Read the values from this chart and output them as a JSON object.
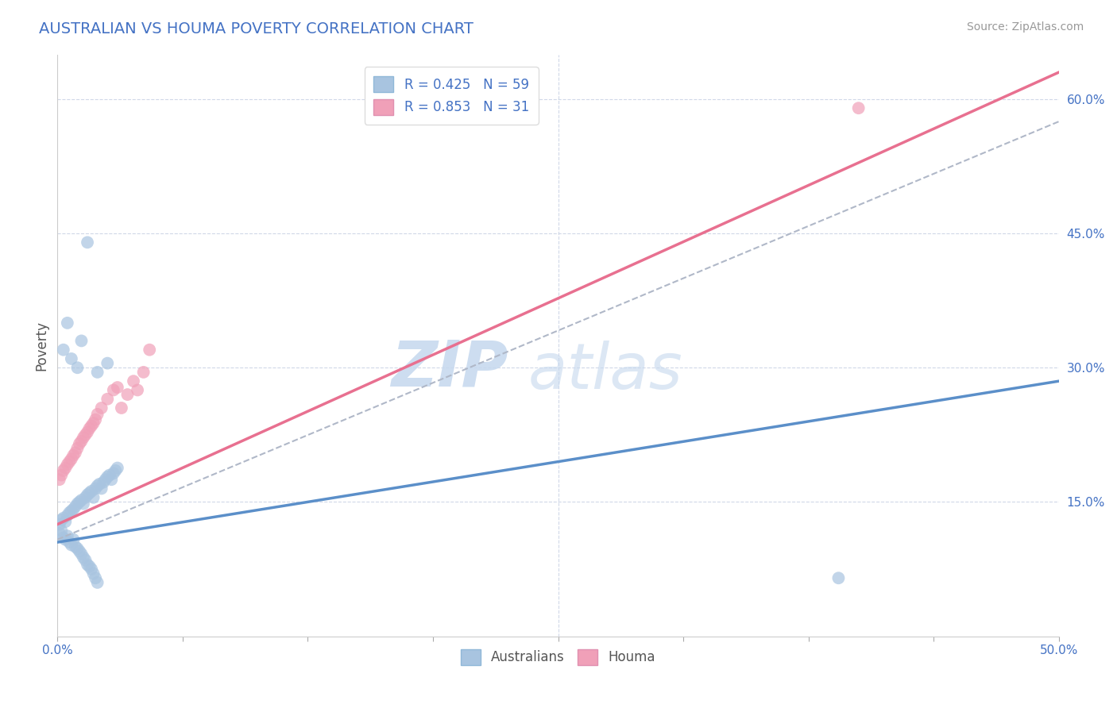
{
  "title": "AUSTRALIAN VS HOUMA POVERTY CORRELATION CHART",
  "source": "Source: ZipAtlas.com",
  "ylabel": "Poverty",
  "xlim": [
    0.0,
    0.5
  ],
  "ylim": [
    0.0,
    0.65
  ],
  "xtick_positions": [
    0.0,
    0.0625,
    0.125,
    0.1875,
    0.25,
    0.3125,
    0.375,
    0.4375,
    0.5
  ],
  "xtick_labels_show": {
    "0.0": "0.0%",
    "0.50": "50.0%"
  },
  "yticks_right": [
    0.15,
    0.3,
    0.45,
    0.6
  ],
  "legend_r1": "R = 0.425   N = 59",
  "legend_r2": "R = 0.853   N = 31",
  "color_australian": "#a8c4e0",
  "color_houma": "#f0a0b8",
  "line_color_australian": "#5b8fc9",
  "line_color_houma": "#e87090",
  "background_color": "#ffffff",
  "grid_color": "#d0d8e8",
  "watermark_zip": "ZIP",
  "watermark_atlas": "atlas",
  "aus_scatter_x": [
    0.001,
    0.002,
    0.003,
    0.004,
    0.005,
    0.006,
    0.007,
    0.008,
    0.009,
    0.01,
    0.011,
    0.012,
    0.013,
    0.014,
    0.015,
    0.016,
    0.017,
    0.018,
    0.019,
    0.02,
    0.021,
    0.022,
    0.023,
    0.024,
    0.025,
    0.026,
    0.027,
    0.028,
    0.029,
    0.03,
    0.001,
    0.002,
    0.003,
    0.004,
    0.005,
    0.006,
    0.007,
    0.008,
    0.009,
    0.01,
    0.011,
    0.012,
    0.013,
    0.014,
    0.015,
    0.016,
    0.017,
    0.018,
    0.019,
    0.02,
    0.003,
    0.005,
    0.007,
    0.01,
    0.012,
    0.015,
    0.02,
    0.025,
    0.39
  ],
  "aus_scatter_y": [
    0.125,
    0.13,
    0.132,
    0.128,
    0.135,
    0.138,
    0.14,
    0.142,
    0.145,
    0.148,
    0.15,
    0.152,
    0.148,
    0.155,
    0.158,
    0.16,
    0.162,
    0.155,
    0.165,
    0.168,
    0.17,
    0.165,
    0.172,
    0.175,
    0.178,
    0.18,
    0.175,
    0.182,
    0.185,
    0.188,
    0.115,
    0.118,
    0.11,
    0.108,
    0.112,
    0.105,
    0.102,
    0.108,
    0.1,
    0.098,
    0.095,
    0.092,
    0.088,
    0.085,
    0.08,
    0.078,
    0.075,
    0.07,
    0.065,
    0.06,
    0.32,
    0.35,
    0.31,
    0.3,
    0.33,
    0.44,
    0.295,
    0.305,
    0.065
  ],
  "houma_scatter_x": [
    0.001,
    0.002,
    0.003,
    0.004,
    0.005,
    0.006,
    0.007,
    0.008,
    0.009,
    0.01,
    0.011,
    0.012,
    0.013,
    0.014,
    0.015,
    0.016,
    0.017,
    0.018,
    0.019,
    0.02,
    0.022,
    0.025,
    0.028,
    0.03,
    0.032,
    0.035,
    0.038,
    0.04,
    0.043,
    0.046,
    0.4
  ],
  "houma_scatter_y": [
    0.175,
    0.18,
    0.185,
    0.188,
    0.192,
    0.195,
    0.198,
    0.202,
    0.205,
    0.21,
    0.215,
    0.218,
    0.222,
    0.225,
    0.228,
    0.232,
    0.235,
    0.238,
    0.242,
    0.248,
    0.255,
    0.265,
    0.275,
    0.278,
    0.255,
    0.27,
    0.285,
    0.275,
    0.295,
    0.32,
    0.59
  ],
  "aus_line_x": [
    0.0,
    0.5
  ],
  "aus_line_y": [
    0.105,
    0.285
  ],
  "houma_line_x": [
    0.0,
    0.5
  ],
  "houma_line_y": [
    0.125,
    0.63
  ],
  "dash_line_x": [
    0.0,
    0.5
  ],
  "dash_line_y": [
    0.108,
    0.575
  ]
}
